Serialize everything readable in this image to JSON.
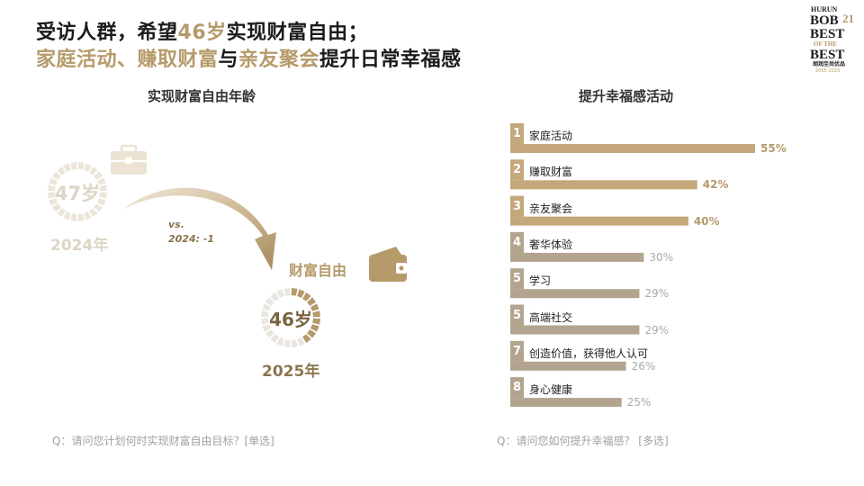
{
  "title": {
    "line1": [
      {
        "text": "受访人群，希望",
        "style": "dark"
      },
      {
        "text": "46岁",
        "style": "gold"
      },
      {
        "text": "实现财富自由；",
        "style": "dark"
      }
    ],
    "line2": [
      {
        "text": "家庭活动、赚取财富",
        "style": "gold"
      },
      {
        "text": "与",
        "style": "dark"
      },
      {
        "text": "亲友聚会",
        "style": "gold"
      },
      {
        "text": "提升日常幸福感",
        "style": "dark"
      }
    ]
  },
  "logo": {
    "lines": [
      "HURUN",
      "BOB",
      "21",
      "BEST",
      "OF THE",
      "BEST",
      "胡润至尚优品",
      "2005-2025"
    ]
  },
  "left": {
    "section_title": "实现财富自由年龄",
    "age_2024": "47岁",
    "year_2024": "2024年",
    "vs_line1": "vs.",
    "vs_line2": "2024: -1",
    "wealth_label": "财富自由",
    "age_2025": "46岁",
    "year_2025": "2025年",
    "question": "Q：请问您计划何时实现财富自由目标？[单选]"
  },
  "right": {
    "section_title": "提升幸福感活动",
    "question": "Q：请问您如何提升幸福感？ [多选]"
  },
  "chart_data": [
    {
      "type": "stat",
      "title": "实现财富自由年龄",
      "values": [
        {
          "year": "2024年",
          "age": 47
        },
        {
          "year": "2025年",
          "age": 46
        }
      ],
      "annotation": "vs. 2024: -1"
    },
    {
      "type": "bar",
      "title": "提升幸福感活动",
      "ranks": [
        "1",
        "2",
        "3",
        "4",
        "5",
        "5",
        "7",
        "8"
      ],
      "categories": [
        "家庭活动",
        "赚取财富",
        "亲友聚会",
        "奢华体验",
        "学习",
        "高端社交",
        "创造价值，获得他人认可",
        "身心健康"
      ],
      "values": [
        55,
        42,
        40,
        30,
        29,
        29,
        26,
        25
      ],
      "labels": [
        "55%",
        "42%",
        "40%",
        "30%",
        "29%",
        "29%",
        "26%",
        "25%"
      ],
      "xlim": [
        0,
        60
      ],
      "colors": {
        "top3": "#c4a77a",
        "rest": "#b3a490",
        "top3_text": "#b59a6a",
        "rest_text": "#aaaaaa"
      }
    }
  ]
}
